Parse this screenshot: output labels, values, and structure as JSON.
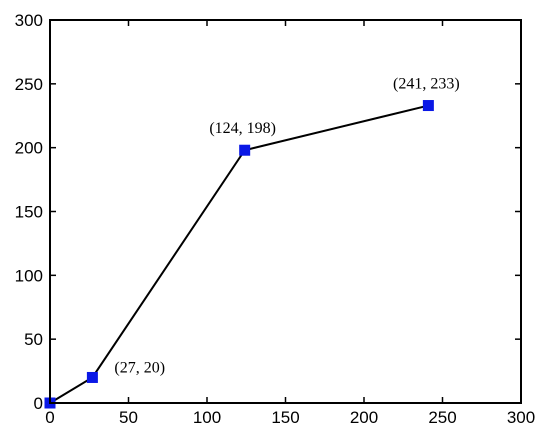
{
  "chart_data": {
    "type": "line",
    "title": "",
    "xlabel": "",
    "ylabel": "",
    "xlim": [
      0,
      300
    ],
    "ylim": [
      0,
      300
    ],
    "x_ticks": [
      0,
      50,
      100,
      150,
      200,
      250,
      300
    ],
    "y_ticks": [
      0,
      50,
      100,
      150,
      200,
      250,
      300
    ],
    "grid": false,
    "series": [
      {
        "line_color": "#000000",
        "marker_color": "#0a18e6",
        "marker": "square",
        "points": [
          {
            "x": 0,
            "y": 0,
            "label": ""
          },
          {
            "x": 27,
            "y": 20,
            "label": "(27, 20)"
          },
          {
            "x": 124,
            "y": 198,
            "label": "(124, 198)"
          },
          {
            "x": 241,
            "y": 233,
            "label": "(241, 233)"
          }
        ]
      }
    ]
  }
}
